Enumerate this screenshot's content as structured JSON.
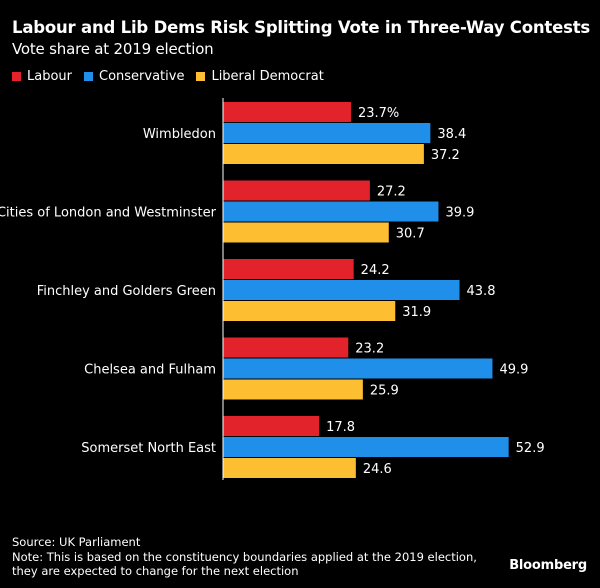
{
  "header": {
    "title": "Labour and Lib Dems Risk Splitting Vote in Three-Way Contests",
    "subtitle": "Vote share at 2019 election"
  },
  "footer": {
    "source": "Source: UK Parliament",
    "note_line1": "Note: This is based on the constituency boundaries applied at the 2019 election,",
    "note_line2": "they are expected to change for the next election",
    "brand": "Bloomberg"
  },
  "chart_data": {
    "type": "bar",
    "orientation": "horizontal",
    "title": "Labour and Lib Dems Risk Splitting Vote in Three-Way Contests",
    "subtitle": "Vote share at 2019 election",
    "categories": [
      "Wimbledon",
      "Cities of London and Westminster",
      "Finchley and Golders Green",
      "Chelsea and Fulham",
      "Somerset North East"
    ],
    "series": [
      {
        "name": "Labour",
        "color": "#e3232b",
        "values": [
          23.7,
          27.2,
          24.2,
          23.2,
          17.8
        ]
      },
      {
        "name": "Conservative",
        "color": "#1f8fea",
        "values": [
          38.4,
          39.9,
          43.8,
          49.9,
          52.9
        ]
      },
      {
        "name": "Liberal Democrat",
        "color": "#fdbe31",
        "values": [
          37.2,
          30.7,
          31.9,
          25.9,
          24.6
        ]
      }
    ],
    "value_labels": [
      [
        "23.7%",
        "38.4",
        "37.2"
      ],
      [
        "27.2",
        "39.9",
        "30.7"
      ],
      [
        "24.2",
        "43.8",
        "31.9"
      ],
      [
        "23.2",
        "49.9",
        "25.9"
      ],
      [
        "17.8",
        "52.9",
        "24.6"
      ]
    ],
    "xlim": [
      0,
      55
    ],
    "legend": "top-left",
    "grid": false
  }
}
